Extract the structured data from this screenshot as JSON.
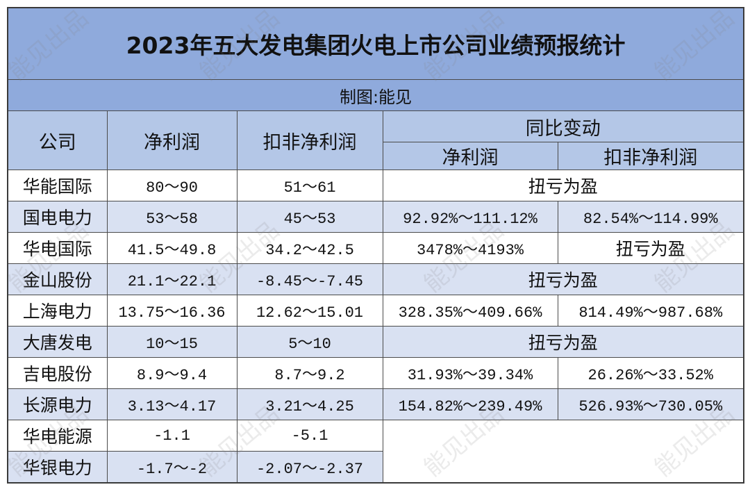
{
  "watermark": "能见出品",
  "colors": {
    "title_bg": "#8FAADC",
    "header_bg": "#B4C7E7",
    "stripe_bg": "#D9E1F2",
    "border": "#4A4A4A"
  },
  "chart_data": {
    "type": "table",
    "title": "2023年五大发电集团火电上市公司业绩预报统计",
    "subtitle": "制图:能见",
    "columns": {
      "company": "公司",
      "net_profit": "净利润",
      "deducted_net_profit": "扣非净利润",
      "yoy_change": "同比变动",
      "yoy_net_profit": "净利润",
      "yoy_deducted_net_profit": "扣非净利润"
    },
    "rows": [
      {
        "company": "华能国际",
        "net_profit": "80～90",
        "deducted_net_profit": "51～61",
        "yoy_change": "扭亏为盈"
      },
      {
        "company": "国电电力",
        "net_profit": "53～58",
        "deducted_net_profit": "45～53",
        "yoy_change": [
          "92.92%～111.12%",
          "82.54%～114.99%"
        ]
      },
      {
        "company": "华电国际",
        "net_profit": "41.5～49.8",
        "deducted_net_profit": "34.2～42.5",
        "yoy_change": [
          "3478%～4193%",
          "扭亏为盈"
        ]
      },
      {
        "company": "金山股份",
        "net_profit": "21.1～22.1",
        "deducted_net_profit": "-8.45～-7.45",
        "yoy_change": "扭亏为盈"
      },
      {
        "company": "上海电力",
        "net_profit": "13.75～16.36",
        "deducted_net_profit": "12.62～15.01",
        "yoy_change": [
          "328.35%～409.66%",
          "814.49%～987.68%"
        ]
      },
      {
        "company": "大唐发电",
        "net_profit": "10～15",
        "deducted_net_profit": "5～10",
        "yoy_change": "扭亏为盈"
      },
      {
        "company": "吉电股份",
        "net_profit": "8.9～9.4",
        "deducted_net_profit": "8.7～9.2",
        "yoy_change": [
          "31.93%～39.34%",
          "26.26%～33.52%"
        ]
      },
      {
        "company": "长源电力",
        "net_profit": "3.13～4.17",
        "deducted_net_profit": "3.21～4.25",
        "yoy_change": [
          "154.82%～239.49%",
          "526.93%～730.05%"
        ]
      },
      {
        "company": "华电能源",
        "net_profit": "-1.1",
        "deducted_net_profit": "-5.1",
        "yoy_change": null
      },
      {
        "company": "华银电力",
        "net_profit": "-1.7～-2",
        "deducted_net_profit": "-2.07～-2.37",
        "yoy_change": null
      }
    ]
  }
}
